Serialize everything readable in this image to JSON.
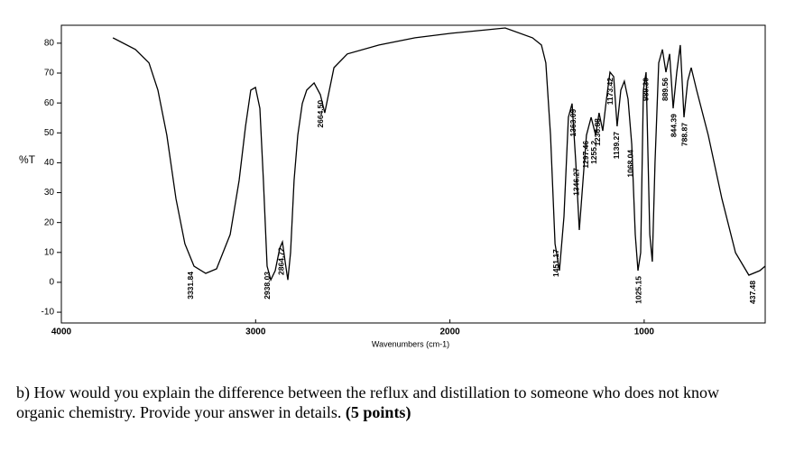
{
  "chart_data": {
    "type": "line",
    "ylabel": "%T",
    "xlabel": "Wavenumbers (cm-1)",
    "xlim": [
      4000,
      377
    ],
    "xticks": [
      4000,
      3000,
      2000,
      1000
    ],
    "ylim": [
      -13.6,
      86
    ],
    "yticks": [
      -10,
      0,
      10,
      20,
      30,
      40,
      50,
      60,
      70,
      80
    ],
    "color": "#000000",
    "x": [
      3735,
      3619,
      3549,
      3503,
      3457,
      3410,
      3364,
      3317,
      3257,
      3201,
      3131,
      3085,
      3052,
      3025,
      3001,
      2978,
      2960,
      2941,
      2922,
      2899,
      2876,
      2862,
      2848,
      2834,
      2820,
      2802,
      2783,
      2760,
      2737,
      2699,
      2667,
      2644,
      2625,
      2597,
      2528,
      2365,
      2179,
      1993,
      1808,
      1715,
      1575,
      1529,
      1506,
      1482,
      1459,
      1436,
      1413,
      1390,
      1371,
      1352,
      1334,
      1315,
      1297,
      1273,
      1250,
      1232,
      1213,
      1194,
      1176,
      1157,
      1139,
      1120,
      1102,
      1083,
      1064,
      1046,
      1032,
      1018,
      1004,
      990,
      971,
      958,
      944,
      925,
      906,
      888,
      869,
      851,
      832,
      814,
      795,
      776,
      758,
      730,
      670,
      600,
      530,
      461,
      405,
      377
    ],
    "values": [
      81.8,
      77.9,
      73.4,
      64.3,
      49.2,
      28.0,
      12.9,
      5.4,
      3.0,
      4.5,
      16.0,
      34.1,
      52.2,
      64.3,
      65.2,
      58.2,
      34.1,
      5.4,
      0.8,
      3.9,
      11.4,
      13.5,
      6.9,
      0.8,
      9.9,
      34.1,
      49.2,
      59.8,
      64.3,
      66.7,
      62.8,
      56.7,
      62.8,
      71.8,
      76.4,
      79.4,
      81.8,
      83.3,
      84.5,
      85.1,
      81.8,
      79.4,
      73.4,
      49.2,
      12.9,
      3.9,
      22.0,
      55.2,
      59.8,
      40.1,
      17.5,
      34.1,
      49.2,
      55.2,
      49.2,
      56.7,
      50.7,
      61.3,
      70.3,
      68.8,
      52.2,
      64.3,
      67.3,
      61.3,
      46.2,
      16.0,
      3.9,
      9.9,
      64.3,
      70.3,
      16.0,
      6.9,
      40.1,
      73.4,
      77.9,
      70.3,
      76.4,
      58.2,
      70.3,
      79.4,
      55.2,
      67.3,
      71.8,
      64.3,
      49.2,
      28.0,
      9.9,
      2.4,
      3.9,
      5.4
    ],
    "annotations": [
      3331.84,
      2938.03,
      2864.72,
      {
        "value": 2664.5,
        "label": "2664.50"
      },
      1451.17,
      1363.09,
      1346.27,
      1297.46,
      1255.2,
      1236.88,
      1173.42,
      1139.27,
      1068.04,
      1025.15,
      {
        "value": 989.3,
        "label": "989.30"
      },
      889.56,
      844.39,
      788.87,
      437.48
    ]
  },
  "question": {
    "text": "b) How would you explain the difference between the reflux and distillation to someone who does not know organic chemistry. Provide your answer in details.",
    "points": "(5 points)"
  }
}
